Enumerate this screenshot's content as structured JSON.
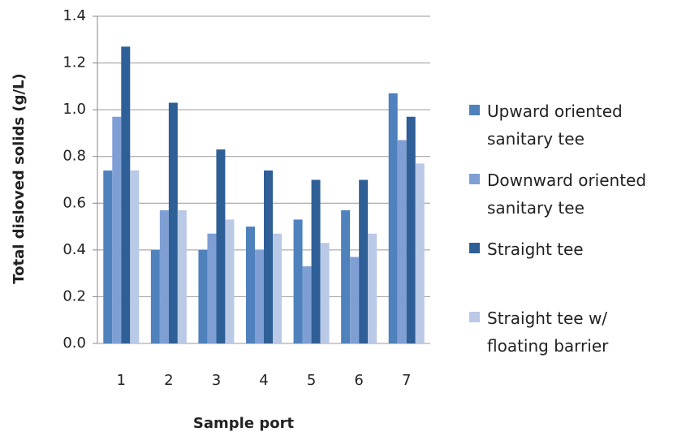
{
  "chart_data": {
    "type": "bar",
    "x_label": "Sample port",
    "y_label": "Total disloved solids (g/L)",
    "categories": [
      "1",
      "2",
      "3",
      "4",
      "5",
      "6",
      "7"
    ],
    "series": [
      {
        "name": "Upward oriented sanitary tee",
        "color": "#4f81bd",
        "values": [
          0.74,
          0.4,
          0.4,
          0.5,
          0.53,
          0.57,
          1.07
        ]
      },
      {
        "name": "Downward oriented sanitary tee",
        "color": "#7f9fd4",
        "values": [
          0.97,
          0.57,
          0.47,
          0.4,
          0.33,
          0.37,
          0.87
        ]
      },
      {
        "name": "Straight tee",
        "color": "#2f5f97",
        "values": [
          1.27,
          1.03,
          0.83,
          0.74,
          0.7,
          0.7,
          0.97
        ]
      },
      {
        "name": "Straight tee w/ floating barrier",
        "color": "#b9c9e6",
        "values": [
          0.74,
          0.57,
          0.53,
          0.47,
          0.43,
          0.47,
          0.77
        ]
      }
    ],
    "ylim": [
      0,
      1.4
    ],
    "yticks": [
      {
        "value": 0,
        "label": "0.0"
      },
      0.2,
      0.4,
      0.6,
      0.8,
      {
        "value": 1,
        "label": "1.0"
      },
      1.2,
      1.4
    ],
    "grid": true
  }
}
